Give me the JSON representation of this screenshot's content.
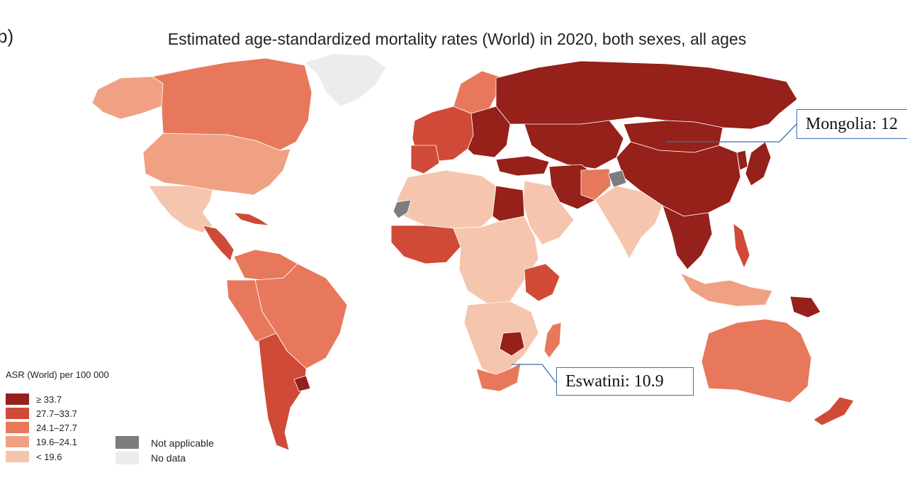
{
  "panel_label": "b)",
  "title": "Estimated age-standardized mortality rates (World) in 2020, both sexes, all ages",
  "legend": {
    "title": "ASR (World) per 100 000",
    "classes": [
      {
        "label": "≥ 33.7",
        "color": "#96201a"
      },
      {
        "label": "27.7–33.7",
        "color": "#cf4a37"
      },
      {
        "label": "24.1–27.7",
        "color": "#e8785c"
      },
      {
        "label": "19.6–24.1",
        "color": "#f0a184"
      },
      {
        "label": "< 19.6",
        "color": "#f5c5ad"
      }
    ],
    "other": [
      {
        "label": "Not applicable",
        "color": "#7d7d7d"
      },
      {
        "label": "No data",
        "color": "#ececec"
      }
    ]
  },
  "callouts": {
    "mongolia": "Mongolia: 12",
    "eswatini": "Eswatini: 10.9"
  },
  "colors": {
    "c1": "#96201a",
    "c2": "#cf4a37",
    "c3": "#e8785c",
    "c4": "#f0a184",
    "c5": "#f5c5ad",
    "na": "#7d7d7d",
    "nodata": "#ececec",
    "callout_line": "#3a6fb0",
    "border": "#8a3a2c"
  }
}
